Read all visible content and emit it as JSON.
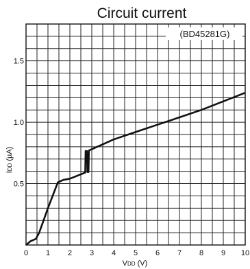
{
  "chart_data": {
    "type": "line",
    "title": "Circuit current",
    "annotation": "(BD45281G)",
    "ylabel": "I",
    "ylabel_sub": "DD",
    "ylabel_unit": " (µA)",
    "xlabel": "V",
    "xlabel_sub": "DD",
    "xlabel_unit": " (V)",
    "xlim": [
      0,
      10
    ],
    "ylim": [
      0,
      1.8
    ],
    "xticks": [
      "0",
      "1",
      "2",
      "3",
      "4",
      "5",
      "6",
      "7",
      "8",
      "9",
      "10"
    ],
    "yticks": [
      {
        "value": 0.5,
        "label": "0.5"
      },
      {
        "value": 1.0,
        "label": "1.0"
      },
      {
        "value": 1.5,
        "label": "1.5"
      }
    ],
    "grid": true,
    "series": [
      {
        "color": "#111111",
        "points": [
          [
            0.0,
            0.0
          ],
          [
            0.2,
            0.03
          ],
          [
            0.45,
            0.05
          ],
          [
            0.6,
            0.1
          ],
          [
            1.0,
            0.3
          ],
          [
            1.45,
            0.51
          ],
          [
            1.7,
            0.53
          ],
          [
            2.0,
            0.54
          ],
          [
            2.7,
            0.59
          ],
          [
            2.72,
            0.765
          ],
          [
            2.78,
            0.765
          ],
          [
            2.8,
            0.595
          ],
          [
            2.85,
            0.595
          ],
          [
            2.87,
            0.77
          ],
          [
            3.5,
            0.82
          ],
          [
            4.0,
            0.86
          ],
          [
            5.0,
            0.92
          ],
          [
            6.0,
            0.98
          ],
          [
            7.0,
            1.04
          ],
          [
            8.0,
            1.1
          ],
          [
            9.0,
            1.17
          ],
          [
            10.0,
            1.24
          ]
        ]
      }
    ]
  }
}
